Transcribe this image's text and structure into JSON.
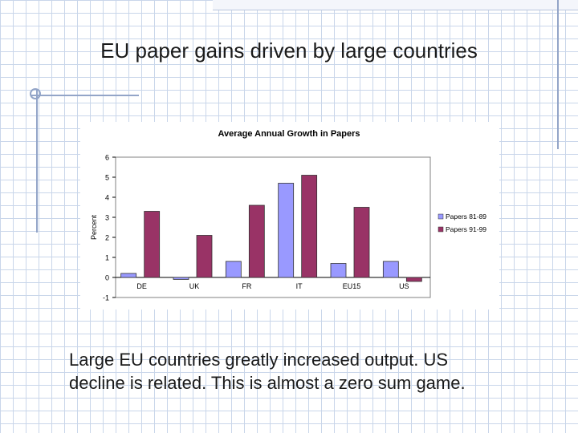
{
  "slide": {
    "title": "EU paper gains driven by large countries",
    "body_lines": [
      "Large EU countries greatly increased output.  US",
      "decline is related.  This is almost a zero sum game."
    ]
  },
  "chart_data": {
    "type": "bar",
    "title": "Average Annual Growth in Papers",
    "xlabel": "",
    "ylabel": "Percent",
    "categories": [
      "DE",
      "UK",
      "FR",
      "IT",
      "EU15",
      "US"
    ],
    "series": [
      {
        "name": "Papers 81-89",
        "values": [
          0.2,
          -0.1,
          0.8,
          4.7,
          0.7,
          0.8
        ],
        "color": "#9999ff"
      },
      {
        "name": "Papers 91-99",
        "values": [
          3.3,
          2.1,
          3.6,
          5.1,
          3.5,
          -0.2
        ],
        "color": "#993366"
      }
    ],
    "ylim": [
      -1,
      6
    ],
    "yticks": [
      "-1",
      "0",
      "1",
      "2",
      "3",
      "4",
      "5",
      "6"
    ],
    "grid": false,
    "legend": "right",
    "plot_background": "#ffffff"
  }
}
